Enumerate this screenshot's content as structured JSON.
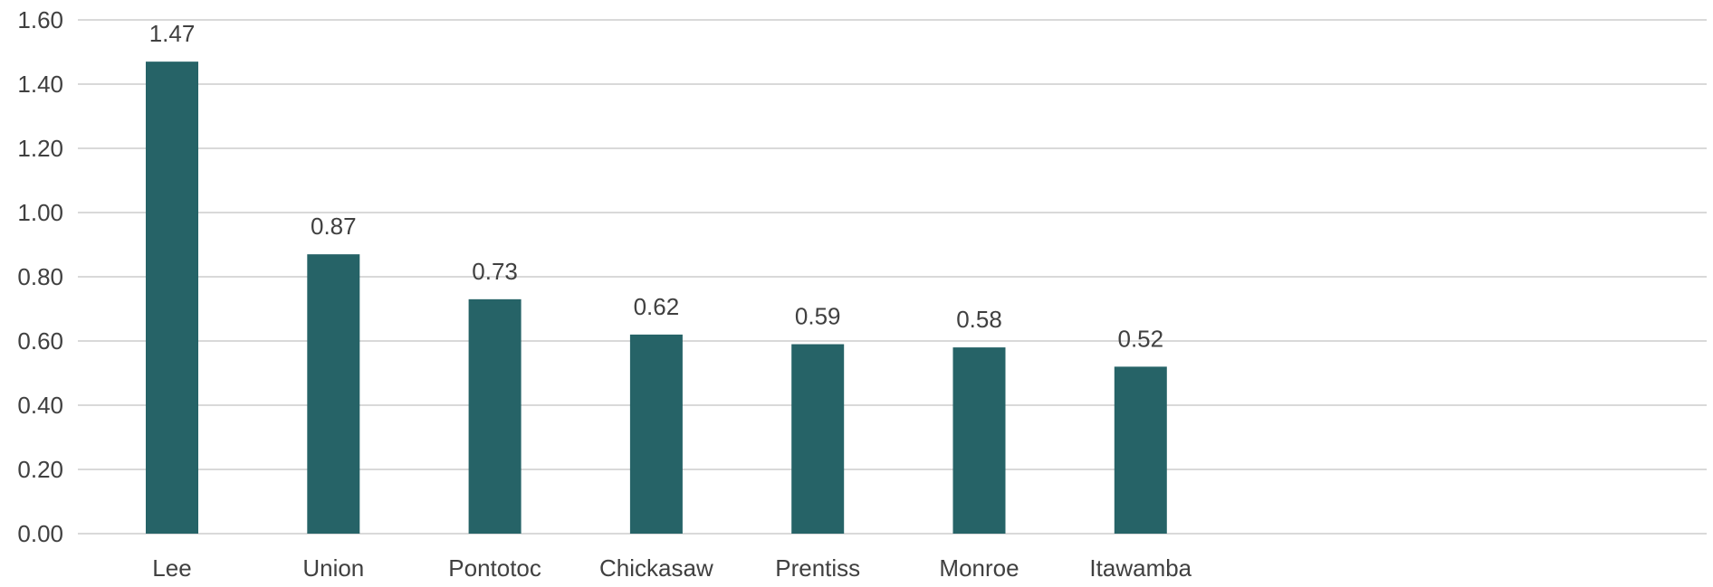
{
  "chart_data": {
    "type": "bar",
    "categories": [
      "Lee",
      "Union",
      "Pontotoc",
      "Chickasaw",
      "Prentiss",
      "Monroe",
      "Itawamba"
    ],
    "values": [
      1.47,
      0.87,
      0.73,
      0.62,
      0.59,
      0.58,
      0.52
    ],
    "data_labels": [
      "1.47",
      "0.87",
      "0.73",
      "0.62",
      "0.59",
      "0.58",
      "0.52"
    ],
    "y_ticks": [
      "0.00",
      "0.20",
      "0.40",
      "0.60",
      "0.80",
      "1.00",
      "1.20",
      "1.40",
      "1.60"
    ],
    "ylim": [
      0,
      1.6
    ],
    "title": "",
    "xlabel": "",
    "ylabel": "",
    "grid": true,
    "legend": "none",
    "bar_color": "#266367",
    "grid_color": "#d9d9d9",
    "text_color": "#404040"
  }
}
